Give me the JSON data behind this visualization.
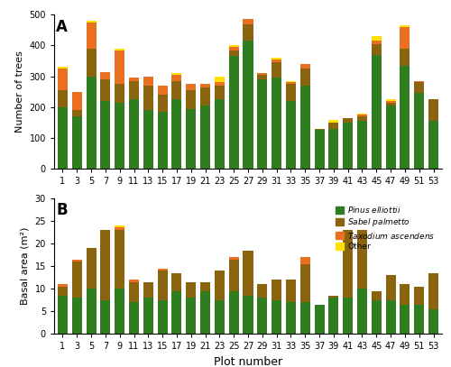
{
  "plot_numbers": [
    1,
    3,
    5,
    7,
    9,
    11,
    13,
    15,
    17,
    19,
    21,
    23,
    25,
    27,
    29,
    31,
    33,
    35,
    37,
    39,
    41,
    43,
    45,
    47,
    49,
    51,
    53
  ],
  "panel_A": {
    "pinus": [
      200,
      170,
      300,
      220,
      215,
      225,
      190,
      185,
      225,
      195,
      205,
      225,
      365,
      415,
      290,
      295,
      220,
      270,
      125,
      130,
      150,
      155,
      370,
      205,
      335,
      245,
      155
    ],
    "sabal": [
      55,
      20,
      90,
      70,
      60,
      60,
      80,
      55,
      60,
      60,
      60,
      45,
      20,
      55,
      15,
      50,
      55,
      55,
      5,
      20,
      15,
      15,
      35,
      10,
      55,
      35,
      70
    ],
    "taxodium": [
      70,
      60,
      85,
      25,
      110,
      10,
      30,
      30,
      20,
      20,
      10,
      10,
      10,
      15,
      5,
      10,
      5,
      15,
      0,
      0,
      0,
      5,
      10,
      5,
      70,
      5,
      0
    ],
    "other_A": [
      5,
      0,
      5,
      0,
      5,
      0,
      0,
      0,
      5,
      0,
      0,
      20,
      5,
      0,
      0,
      5,
      5,
      0,
      0,
      10,
      0,
      5,
      15,
      5,
      5,
      0,
      0
    ]
  },
  "panel_B": {
    "pinus": [
      8.5,
      8.0,
      10.0,
      7.5,
      10.0,
      7.0,
      8.0,
      7.5,
      9.5,
      8.0,
      9.5,
      7.5,
      9.5,
      8.5,
      8.0,
      7.5,
      7.0,
      7.0,
      6.5,
      8.0,
      8.0,
      10.0,
      7.5,
      7.5,
      6.5,
      6.5,
      5.5
    ],
    "sabal": [
      2.0,
      8.0,
      9.0,
      15.5,
      13.0,
      4.5,
      3.5,
      6.5,
      4.0,
      3.5,
      2.0,
      6.5,
      7.0,
      10.0,
      3.0,
      4.5,
      5.0,
      8.5,
      0.0,
      0.5,
      15.0,
      13.0,
      2.0,
      5.5,
      4.5,
      4.0,
      8.0
    ],
    "taxodium": [
      0.5,
      0.5,
      0.0,
      0.0,
      0.5,
      0.5,
      0.0,
      0.5,
      0.0,
      0.0,
      0.0,
      0.0,
      0.5,
      0.0,
      0.0,
      0.0,
      0.0,
      1.5,
      0.0,
      0.0,
      0.0,
      0.0,
      0.0,
      0.0,
      0.0,
      0.0,
      0.0
    ],
    "other_B": [
      0.0,
      0.0,
      0.0,
      0.0,
      0.5,
      0.0,
      0.0,
      0.0,
      0.0,
      0.0,
      0.0,
      0.0,
      0.0,
      0.0,
      0.0,
      0.0,
      0.0,
      0.0,
      0.0,
      0.0,
      0.0,
      0.0,
      0.0,
      0.0,
      0.0,
      0.0,
      0.0
    ]
  },
  "colors": {
    "pinus": "#2e7d1e",
    "sabal": "#8B6410",
    "taxodium": "#E87020",
    "other": "#FFE000"
  },
  "ylabel_A": "Number of trees",
  "ylabel_B": "Basal area (m²)",
  "xlabel": "Plot number",
  "ylim_A": [
    0,
    500
  ],
  "ylim_B": [
    0,
    30
  ],
  "yticks_A": [
    0,
    100,
    200,
    300,
    400,
    500
  ],
  "yticks_B": [
    0,
    5,
    10,
    15,
    20,
    25,
    30
  ]
}
